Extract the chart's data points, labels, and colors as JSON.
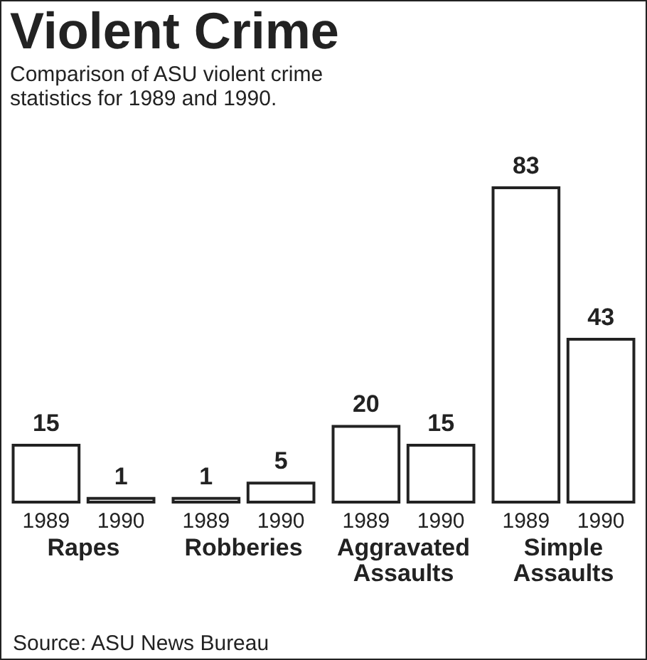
{
  "chart_data": {
    "type": "bar",
    "title": "Violent Crime",
    "subtitle": "Comparison of ASU violent crime statistics for 1989 and 1990.",
    "categories": [
      "Rapes",
      "Robberies",
      "Aggravated Assaults",
      "Simple Assaults"
    ],
    "series": [
      {
        "name": "1989",
        "color": "#ffffff",
        "values": [
          15,
          1,
          20,
          83
        ]
      },
      {
        "name": "1990",
        "color": "#ffffff",
        "values": [
          1,
          5,
          15,
          43
        ]
      }
    ],
    "data_labels": true,
    "legend": false,
    "grid": false,
    "annotations": [
      "Source: ASU News Bureau"
    ]
  }
}
